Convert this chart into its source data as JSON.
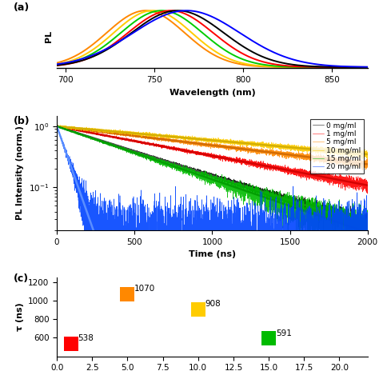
{
  "panel_a": {
    "ylabel": "PL",
    "xlabel": "Wavelength (nm)",
    "xlim": [
      695,
      870
    ],
    "peaks": [
      745,
      749,
      754,
      759,
      763,
      768
    ],
    "widths": [
      22,
      22,
      23,
      24,
      26,
      30
    ],
    "colors": [
      "#ff8800",
      "#ffcc00",
      "#00cc00",
      "#ff0000",
      "#000000",
      "#0000ff"
    ],
    "background": "#ffffff"
  },
  "panel_b": {
    "ylabel": "PL Intensity (norm.)",
    "xlabel": "Time (ns)",
    "xlim": [
      0,
      2000
    ],
    "legend_labels": [
      "0 mg/ml",
      "1 mg/ml",
      "5 mg/ml",
      "10 mg/ml",
      "15 mg/ml",
      "20 mg/ml"
    ],
    "data_colors": [
      "#000000",
      "#ff0000",
      "#ff8800",
      "#ffcc00",
      "#00bb00",
      "#0044ff"
    ],
    "fit_colors": [
      "#555555",
      "#cc0000",
      "#cc6600",
      "#ccaa00",
      "#009900",
      "#6699ff"
    ],
    "taus": [
      538,
      900,
      1400,
      1900,
      500,
      60
    ],
    "noise_amps": [
      0.006,
      0.012,
      0.018,
      0.022,
      0.012,
      0.025
    ],
    "noise_seed": 123,
    "background": "#ffffff"
  },
  "panel_c": {
    "ylabel": "τ (ns)",
    "xlabel": "",
    "xlim": [
      0,
      22
    ],
    "ylim": [
      400,
      1250
    ],
    "yticks": [
      600,
      800,
      1000,
      1200
    ],
    "concentrations": [
      1,
      5,
      10,
      15
    ],
    "tau_values": [
      538,
      1070,
      908,
      591
    ],
    "colors": [
      "#ff0000",
      "#ff8800",
      "#ffcc00",
      "#00bb00"
    ],
    "marker_size": 180,
    "background": "#ffffff"
  }
}
